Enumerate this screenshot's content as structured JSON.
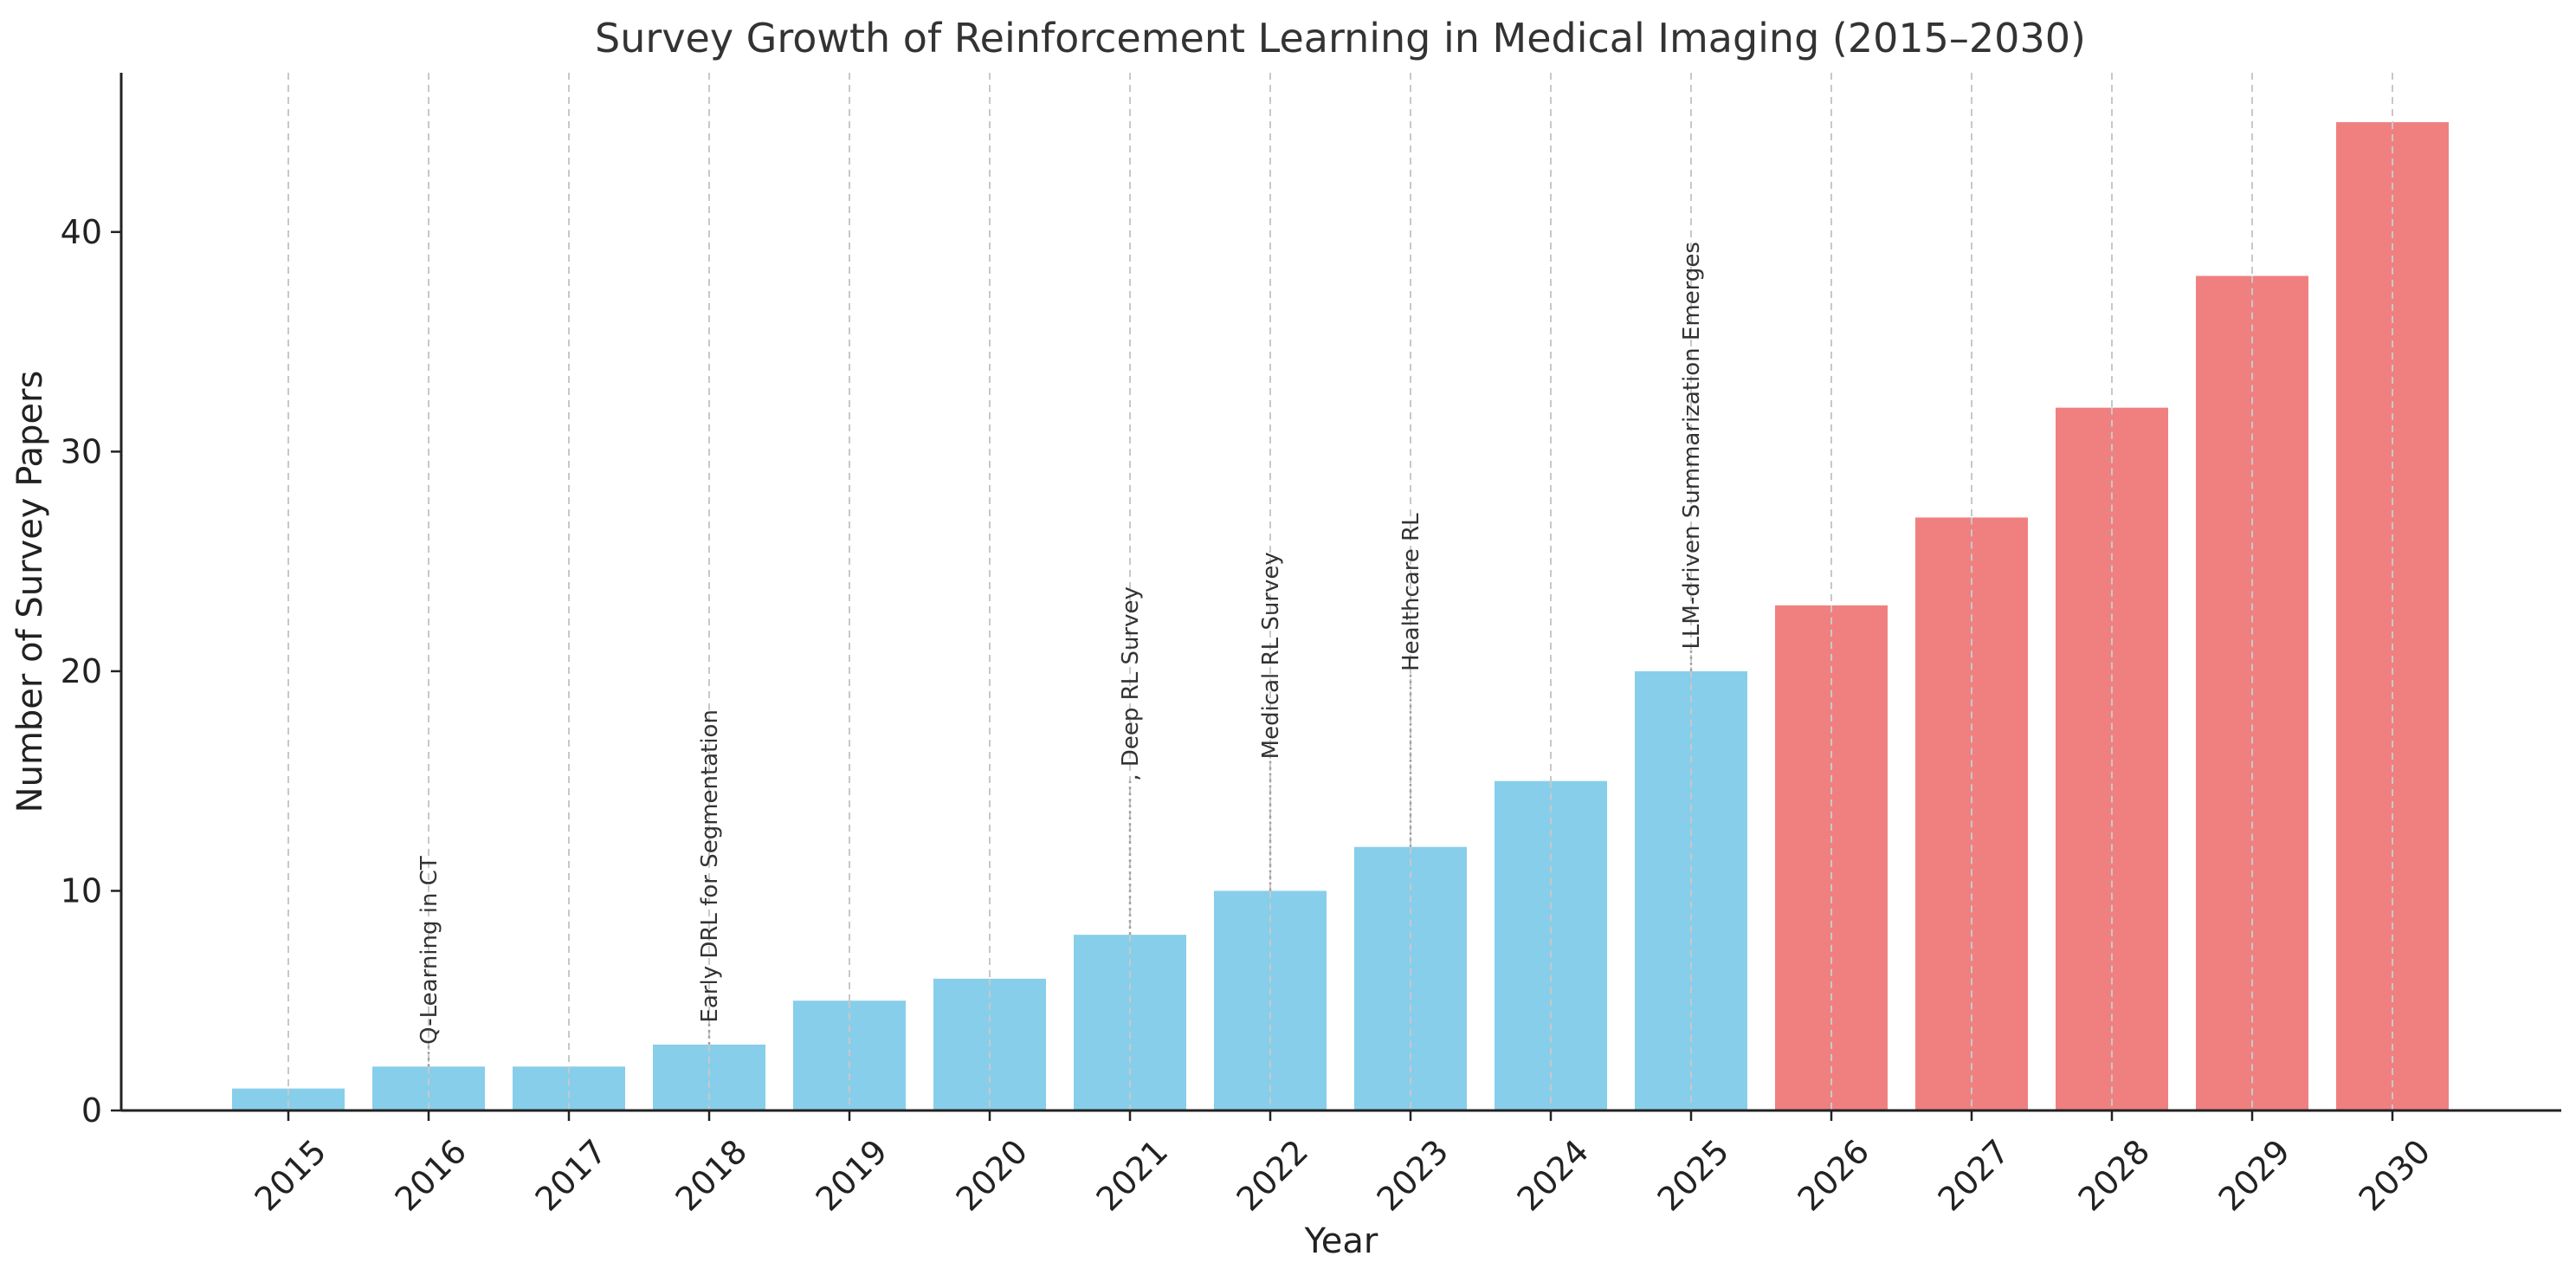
{
  "chart_data": {
    "type": "bar",
    "title": "Survey Growth of Reinforcement Learning in Medical Imaging (2015–2030)",
    "xlabel": "Year",
    "ylabel": "Number of Survey Papers",
    "categories": [
      "2015",
      "2016",
      "2017",
      "2018",
      "2019",
      "2020",
      "2021",
      "2022",
      "2023",
      "2024",
      "2025",
      "2026",
      "2027",
      "2028",
      "2029",
      "2030"
    ],
    "values": [
      1,
      2,
      2,
      3,
      5,
      6,
      8,
      10,
      12,
      15,
      20,
      23,
      27,
      32,
      38,
      45
    ],
    "bar_colors": [
      "#87CEEB",
      "#87CEEB",
      "#87CEEB",
      "#87CEEB",
      "#87CEEB",
      "#87CEEB",
      "#87CEEB",
      "#87CEEB",
      "#87CEEB",
      "#87CEEB",
      "#87CEEB",
      "#F08080",
      "#F08080",
      "#F08080",
      "#F08080",
      "#F08080"
    ],
    "ylim": [
      0,
      47.25
    ],
    "yticks": [
      0,
      10,
      20,
      30,
      40
    ],
    "grid": "vertical dashed",
    "annotations": [
      {
        "category": "2016",
        "text": "Q-Learning in CT",
        "y": 3
      },
      {
        "category": "2018",
        "text": "Early DRL for Segmentation",
        "y": 4
      },
      {
        "category": "2021",
        "text": ", Deep RL Survey",
        "y": 15
      },
      {
        "category": "2022",
        "text": "Medical RL Survey",
        "y": 16
      },
      {
        "category": "2023",
        "text": "Healthcare RL",
        "y": 20
      },
      {
        "category": "2025",
        "text": "LLM-driven Summarization Emerges",
        "y": 21
      }
    ]
  }
}
